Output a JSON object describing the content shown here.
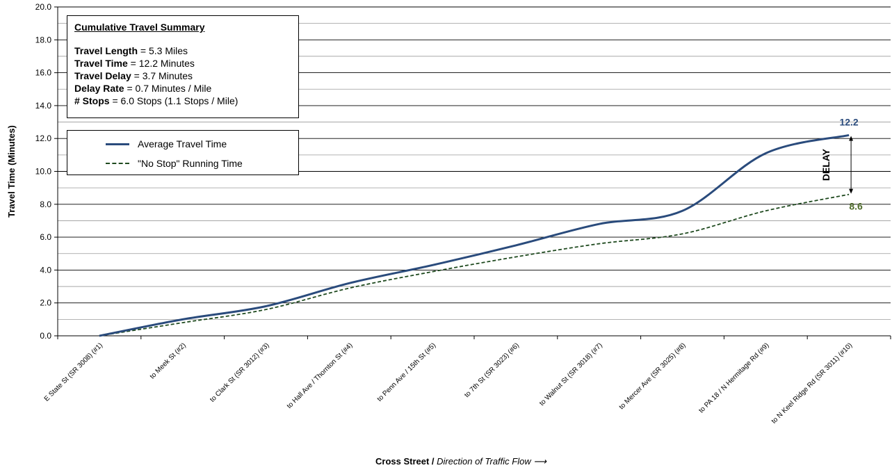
{
  "chart_data": {
    "type": "line",
    "xlabel_bold": "Cross Street /",
    "xlabel_italic": "Direction of Traffic Flow",
    "xlabel_arrow": "⟶",
    "ylabel": "Travel Time (Minutes)",
    "ylim": [
      0,
      20
    ],
    "yticks": [
      "0.0",
      "2.0",
      "4.0",
      "6.0",
      "8.0",
      "10.0",
      "12.0",
      "14.0",
      "16.0",
      "18.0",
      "20.0"
    ],
    "grid": true,
    "categories": [
      "E State St (SR 3008) (#1)",
      "to Meek St (#2)",
      "to Clark St (SR 3012) (#3)",
      "to Hall Ave / Thornton St (#4)",
      "to Penn Ave / 15th St (#5)",
      "to 7th St (SR 3023) (#6)",
      "to Walnut St (SR 3018) (#7)",
      "to Mercer Ave (SR 3025) (#8)",
      "to PA 18 / N Hermitage Rd (#9)",
      "to N Keel Ridge Rd (SR 3011) (#10)"
    ],
    "series": [
      {
        "name": "Average Travel Time",
        "values": [
          0.0,
          1.0,
          1.8,
          3.2,
          4.3,
          5.5,
          6.8,
          7.6,
          11.1,
          12.2
        ],
        "color": "#2a4b7c"
      },
      {
        "name": "\"No Stop\" Running Time",
        "values": [
          0.0,
          0.8,
          1.6,
          2.9,
          3.9,
          4.8,
          5.6,
          6.2,
          7.6,
          8.6
        ],
        "color": "#1f4a1f"
      }
    ],
    "end_labels": {
      "avg": "12.2",
      "nostop": "8.6"
    },
    "delay_label": "DELAY",
    "legend_placement": "top-left"
  },
  "summary": {
    "title": "Cumulative Travel Summary",
    "lines": [
      {
        "label": "Travel Length",
        "value": " = 5.3 Miles"
      },
      {
        "label": "Travel Time",
        "value": " = 12.2 Minutes"
      },
      {
        "label": "Travel Delay",
        "value": " = 3.7 Minutes"
      },
      {
        "label": "Delay Rate",
        "value": " = 0.7 Minutes / Mile"
      },
      {
        "label": "# Stops",
        "value": " = 6.0 Stops (1.1 Stops / Mile)"
      }
    ]
  }
}
